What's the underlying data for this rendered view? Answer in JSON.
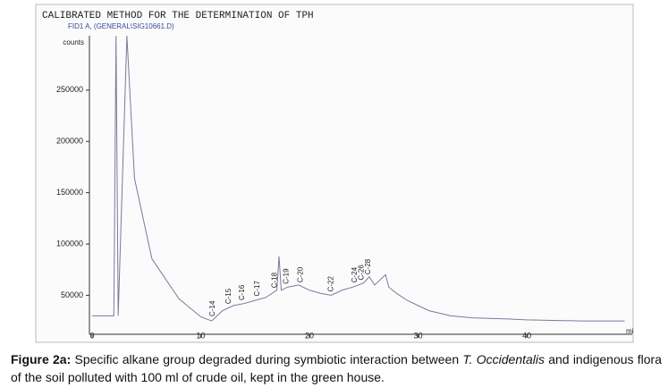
{
  "chart_data": {
    "type": "line",
    "header": "CALIBRATED METHOD FOR THE DETERMINATION OF TPH",
    "subtitle": "FID1 A, (GENERAL\\SIG10661.D)",
    "ylabel": "counts",
    "xlabel": "mi",
    "xlim": [
      0,
      49.7
    ],
    "ylim": [
      12000,
      303000
    ],
    "xticks": [
      0,
      10,
      20,
      30,
      40
    ],
    "yticks": [
      50000,
      100000,
      150000,
      200000,
      250000
    ],
    "series": [
      {
        "color": "#7a7a9a",
        "x": [
          0,
          2.0,
          2.2,
          2.4,
          3.2,
          3.9,
          5.5,
          8,
          10,
          11,
          12,
          13,
          14,
          15,
          16,
          17,
          17.2,
          17.4,
          18,
          19,
          20,
          21,
          22,
          23,
          24,
          25,
          25.5,
          26,
          27,
          27.3,
          28,
          29,
          30,
          31,
          33,
          35,
          38,
          40,
          45,
          49
        ],
        "values": [
          30000,
          30000,
          303000,
          30000,
          303000,
          164000,
          85600,
          46500,
          29000,
          25000,
          35000,
          40000,
          42000,
          45000,
          48000,
          55000,
          88000,
          55000,
          58000,
          60000,
          55000,
          52000,
          50000,
          55000,
          58000,
          62000,
          68000,
          60000,
          70000,
          58000,
          52000,
          45000,
          40000,
          35000,
          30000,
          28000,
          27000,
          26000,
          25000,
          25000
        ]
      }
    ],
    "annotations": [
      {
        "text": "C-14",
        "x": 11.1
      },
      {
        "text": "C-15",
        "x": 12.6
      },
      {
        "text": "C-16",
        "x": 13.8
      },
      {
        "text": "C-17",
        "x": 15.2
      },
      {
        "text": "C-18",
        "x": 16.8
      },
      {
        "text": "C-19",
        "x": 17.9
      },
      {
        "text": "C-20",
        "x": 19.2
      },
      {
        "text": "C-22",
        "x": 22
      },
      {
        "text": "C-24",
        "x": 24.2
      },
      {
        "text": "C-26",
        "x": 24.8
      },
      {
        "text": "C-28",
        "x": 25.4
      }
    ]
  },
  "caption": {
    "label": "Figure 2a:",
    "text_before": "Specific alkane group degraded during symbiotic interaction between",
    "italic": "T. Occidentalis",
    "text_after": "and indigenous flora of the soil polluted with 100 ml of crude oil, kept in the green house."
  }
}
